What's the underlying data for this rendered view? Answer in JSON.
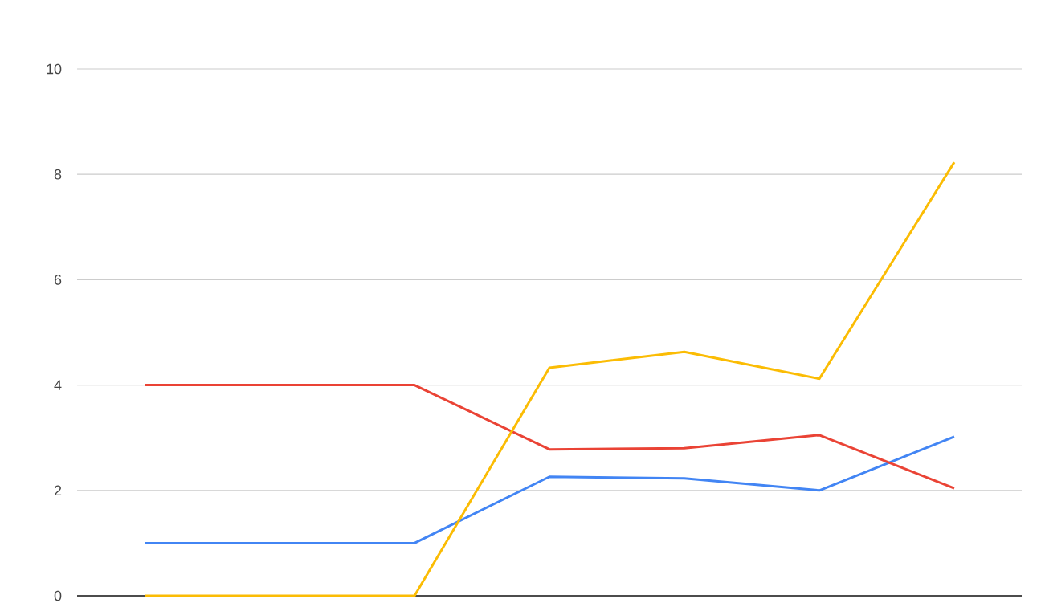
{
  "chart_data": {
    "type": "line",
    "categories": [
      null,
      null,
      null,
      null,
      null,
      null,
      null
    ],
    "ylim": [
      0,
      10
    ],
    "yticks": [
      0,
      2,
      4,
      6,
      8,
      10
    ],
    "tick_labels": "y",
    "grid": "y",
    "marker": "none",
    "line_style": "solid",
    "series": [
      {
        "color": "#4285f4",
        "values": [
          1.0,
          1.0,
          1.0,
          2.26,
          2.23,
          2.0,
          3.02
        ]
      },
      {
        "color": "#ea4335",
        "values": [
          4.0,
          4.0,
          4.0,
          2.78,
          2.8,
          3.05,
          2.04
        ]
      },
      {
        "color": "#fbbc04",
        "values": [
          0,
          0,
          0,
          4.33,
          4.63,
          4.12,
          8.23
        ]
      }
    ]
  }
}
